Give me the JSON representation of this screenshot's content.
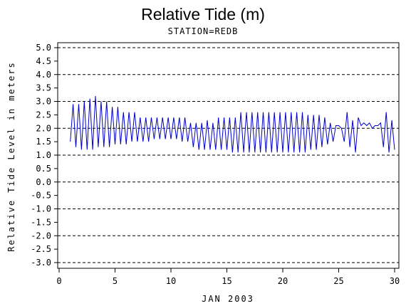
{
  "chart_data": {
    "type": "line",
    "title": "Relative Tide (m)",
    "subtitle": "STATION=REDB",
    "xlabel": "JAN 2003",
    "ylabel": "Relative Tide Level in meters",
    "xlim": [
      0,
      30
    ],
    "ylim": [
      -3.0,
      5.0
    ],
    "x_ticks": [
      "0",
      "5",
      "10",
      "15",
      "20",
      "25",
      "30"
    ],
    "y_ticks": [
      "5.0",
      "4.5",
      "4.0",
      "3.5",
      "3.0",
      "2.5",
      "2.0",
      "1.5",
      "1.0",
      "0.5",
      "0.0",
      "-0.5",
      "-1.0",
      "-1.5",
      "-2.0",
      "-2.5",
      "-3.0"
    ],
    "dashed_gridlines_at": [
      5.0,
      4.0,
      3.0,
      2.0,
      1.0,
      0.0,
      -1.0,
      -2.0,
      -3.0
    ],
    "series_color": "#0000cc",
    "series": [
      {
        "x": [
          1.0,
          1.25,
          1.5,
          1.75,
          2.0,
          2.25,
          2.5,
          2.75,
          3.0,
          3.25,
          3.5,
          3.75,
          4.0,
          4.25,
          4.5,
          4.75,
          5.0,
          5.25,
          5.5,
          5.75,
          6.0,
          6.25,
          6.5,
          6.75,
          7.0,
          7.25,
          7.5,
          7.75,
          8.0,
          8.25,
          8.5,
          8.75,
          9.0,
          9.25,
          9.5,
          9.75,
          10.0,
          10.25,
          10.5,
          10.75,
          11.0,
          11.25,
          11.5,
          11.75,
          12.0,
          12.25,
          12.5,
          12.75,
          13.0,
          13.25,
          13.5,
          13.75,
          14.0,
          14.25,
          14.5,
          14.75,
          15.0,
          15.25,
          15.5,
          15.75,
          16.0,
          16.25,
          16.5,
          16.75,
          17.0,
          17.25,
          17.5,
          17.75,
          18.0,
          18.25,
          18.5,
          18.75,
          19.0,
          19.25,
          19.5,
          19.75,
          20.0,
          20.25,
          20.5,
          20.75,
          21.0,
          21.25,
          21.5,
          21.75,
          22.0,
          22.25,
          22.5,
          22.75,
          23.0,
          23.25,
          23.5,
          23.75,
          24.0,
          24.25,
          24.5,
          24.75,
          25.0,
          25.25,
          25.5,
          25.75,
          26.0,
          26.25,
          26.5,
          26.75,
          27.0,
          27.25,
          27.5,
          27.75,
          28.0,
          28.25,
          28.5,
          28.75,
          29.0,
          29.25,
          29.5,
          29.75,
          30.0
        ],
        "values": [
          1.5,
          2.9,
          1.3,
          2.9,
          1.2,
          3.0,
          1.2,
          3.1,
          1.2,
          3.2,
          1.3,
          3.0,
          1.3,
          3.0,
          1.3,
          2.8,
          1.4,
          2.8,
          1.4,
          2.6,
          1.4,
          2.6,
          1.5,
          2.6,
          1.5,
          2.4,
          1.5,
          2.4,
          1.5,
          2.4,
          1.6,
          2.4,
          1.6,
          2.4,
          1.6,
          2.4,
          1.6,
          2.4,
          1.6,
          2.4,
          1.5,
          2.4,
          1.5,
          2.2,
          1.3,
          2.2,
          1.2,
          2.2,
          1.2,
          2.3,
          1.2,
          2.2,
          1.2,
          2.4,
          1.2,
          2.4,
          1.2,
          2.4,
          1.1,
          2.4,
          1.1,
          2.6,
          1.1,
          2.6,
          1.1,
          2.6,
          1.1,
          2.6,
          1.1,
          2.6,
          1.1,
          2.6,
          1.1,
          2.6,
          1.1,
          2.6,
          1.1,
          2.6,
          1.1,
          2.6,
          1.1,
          2.6,
          1.1,
          2.6,
          1.1,
          2.5,
          1.2,
          2.5,
          1.2,
          2.5,
          1.3,
          2.4,
          1.4,
          2.2,
          1.5,
          2.1,
          2.1,
          2.0,
          1.5,
          2.6,
          1.3,
          2.3,
          1.1,
          2.4,
          2.1,
          2.2,
          2.1,
          2.2,
          2.0,
          2.1,
          2.1,
          2.2,
          1.3,
          2.6,
          1.1,
          2.3,
          1.2
        ]
      }
    ]
  }
}
